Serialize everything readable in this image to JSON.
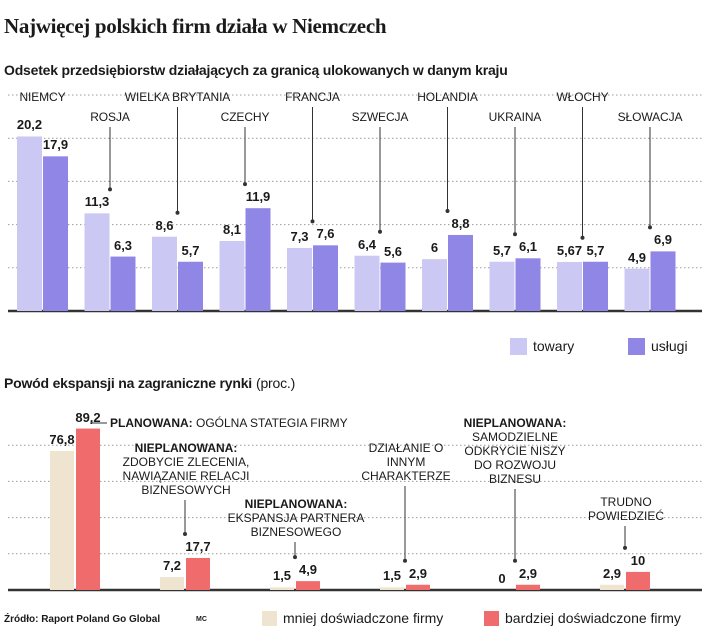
{
  "title": "Najwięcej polskich firm działa w Niemczech",
  "source": "Źródło: Raport Poland Go Global",
  "author": "MC",
  "chart_data": [
    {
      "type": "bar",
      "title": "Odsetek przedsiębiorstw działających za granicą ulokowanych w danym kraju",
      "categories": [
        "NIEMCY",
        "ROSJA",
        "WIELKA BRYTANIA",
        "CZECHY",
        "FRANCJA",
        "SZWECJA",
        "HOLANDIA",
        "UKRAINA",
        "WŁOCHY",
        "SŁOWACJA"
      ],
      "series": [
        {
          "name": "towary",
          "color": "#cbc8f3",
          "values": [
            20.2,
            11.3,
            8.6,
            8.1,
            7.3,
            6.4,
            6,
            5.7,
            5.67,
            4.9
          ],
          "value_labels": [
            "20,2",
            "11,3",
            "8,6",
            "8,1",
            "7,3",
            "6,4",
            "6",
            "5,7",
            "5,67",
            "4,9"
          ]
        },
        {
          "name": "usługi",
          "color": "#8f86e6",
          "values": [
            17.9,
            6.3,
            5.7,
            11.9,
            7.6,
            5.6,
            8.8,
            6.1,
            5.7,
            6.9
          ],
          "value_labels": [
            "17,9",
            "6,3",
            "5,7",
            "11,9",
            "7,6",
            "5,6",
            "8,8",
            "6,1",
            "5,7",
            "6,9"
          ]
        }
      ],
      "ylim": [
        0,
        25
      ],
      "yticks": [
        0,
        5,
        10,
        15,
        20,
        25
      ],
      "grid": true
    },
    {
      "type": "bar",
      "title": "Powód ekspansji na zagraniczne rynki",
      "unit": "(proc.)",
      "categories": [
        "PLANOWANA: OGÓLNA STATEGIA FIRMY",
        "NIEPLANOWANA: ZDOBYCIE ZLECENIA, NAWIĄZANIE RELACJI BIZNESOWYCH",
        "NIEPLANOWANA: EKSPANSJA PARTNERA BIZNESOWEGO",
        "DZIAŁANIE O INNYM CHARAKTERZE",
        "NIEPLANOWANA: SAMODZIELNE ODKRYCIE NISZY DO ROZWOJU BIZNESU",
        "TRUDNO POWIEDZIEĆ"
      ],
      "series": [
        {
          "name": "mniej doświadczone firmy",
          "color": "#efe4cf",
          "values": [
            76.8,
            7.2,
            1.5,
            1.5,
            0,
            2.9
          ],
          "value_labels": [
            "76,8",
            "7,2",
            "1,5",
            "1,5",
            "0",
            "2,9"
          ]
        },
        {
          "name": "bardziej doświadczone firmy",
          "color": "#f06b6b",
          "values": [
            89.2,
            17.7,
            4.9,
            2.9,
            2.9,
            10
          ],
          "value_labels": [
            "89,2",
            "17,7",
            "4,9",
            "2,9",
            "2,9",
            "10"
          ]
        }
      ],
      "ylim": [
        0,
        100
      ],
      "yticks": [
        0,
        20,
        40,
        60,
        80
      ],
      "grid": true
    }
  ]
}
